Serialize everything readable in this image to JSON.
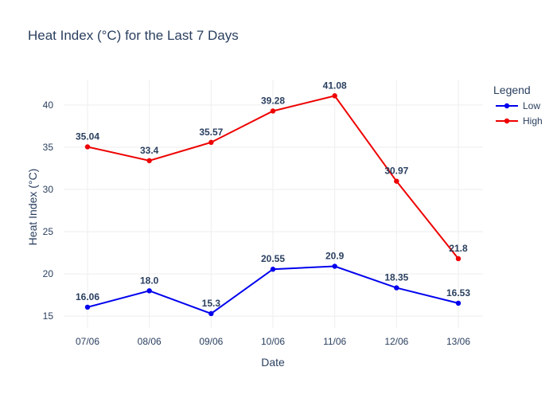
{
  "chart_data": {
    "type": "line",
    "title": "Heat Index (°C) for the Last 7 Days",
    "xlabel": "Date",
    "ylabel": "Heat Index (°C)",
    "categories": [
      "07/06",
      "08/06",
      "09/06",
      "10/06",
      "11/06",
      "12/06",
      "13/06"
    ],
    "yticks": [
      15,
      20,
      25,
      30,
      35,
      40
    ],
    "ylim": [
      13.6,
      43.0
    ],
    "grid": true,
    "legend": {
      "title": "Legend",
      "position": "top-right"
    },
    "series": [
      {
        "name": "Low",
        "color": "#0000ee",
        "values": [
          16.06,
          18.0,
          15.3,
          20.55,
          20.9,
          18.35,
          16.53
        ],
        "labels": [
          "16.06",
          "18.0",
          "15.3",
          "20.55",
          "20.9",
          "18.35",
          "16.53"
        ]
      },
      {
        "name": "High",
        "color": "#ee0000",
        "values": [
          35.04,
          33.4,
          35.57,
          39.28,
          41.08,
          30.97,
          21.8
        ],
        "labels": [
          "35.04",
          "33.4",
          "35.57",
          "39.28",
          "41.08",
          "30.97",
          "21.8"
        ]
      }
    ]
  }
}
